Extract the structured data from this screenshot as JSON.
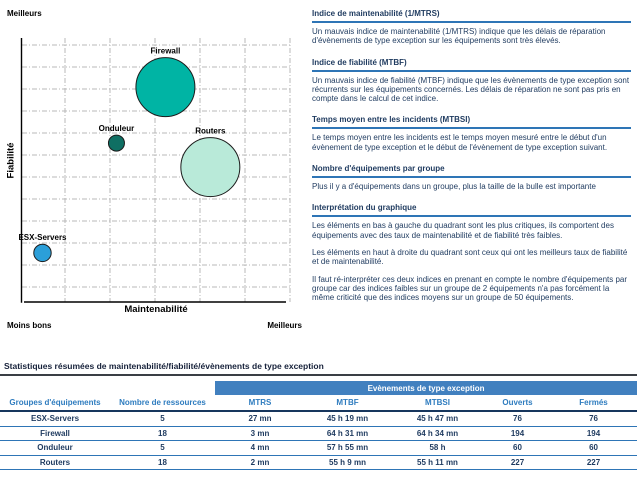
{
  "chart_data": {
    "type": "bubble",
    "title": "",
    "xlabel": "Maintenabilité",
    "ylabel": "Fiabilité",
    "corner_top_left": "Meilleurs",
    "corner_bottom_left": "Moins bons",
    "corner_bottom_right": "Meilleurs",
    "axis_scale": "qualitative: Moins bons -> Meilleurs (0..1 fractions of plot area)",
    "grid": "dashed",
    "bubble_size_meaning": "nombre d'équipements dans le groupe",
    "points": [
      {
        "label": "Firewall",
        "x": 0.535,
        "y": 0.814,
        "size": 18,
        "radius_px": 29.5,
        "color": "#00b4a4"
      },
      {
        "label": "Onduleur",
        "x": 0.353,
        "y": 0.602,
        "size": 5,
        "radius_px": 8,
        "color": "#0f6f63"
      },
      {
        "label": "Routers",
        "x": 0.702,
        "y": 0.511,
        "size": 18,
        "radius_px": 29.5,
        "color": "#b9ead9"
      },
      {
        "label": "ESX-Servers",
        "x": 0.078,
        "y": 0.186,
        "size": 5,
        "radius_px": 8.7,
        "color": "#2b9fd9"
      }
    ]
  },
  "info_panel": {
    "sections": [
      {
        "heading": "Indice de maintenabilité (1/MTRS)",
        "paragraphs": [
          "Un mauvais indice de maintenabilité (1/MTRS) indique que les délais de réparation d'évènements de type exception sur les équipements sont très élevés."
        ]
      },
      {
        "heading": "Indice de fiabilité (MTBF)",
        "paragraphs": [
          "Un mauvais indice de fiabilité (MTBF) indique que les évènements de type exception sont récurrents sur les équipements concernés. Les délais de réparation ne sont pas pris en compte dans le calcul de cet indice."
        ]
      },
      {
        "heading": "Temps moyen entre les incidents (MTBSI)",
        "paragraphs": [
          "Le temps moyen entre les incidents est le temps moyen mesuré entre le début d'un évènement de type exception et le début de l'évènement de type exception suivant."
        ]
      },
      {
        "heading": "Nombre d'équipements par groupe",
        "paragraphs": [
          "Plus il y a d'équipements dans un groupe, plus la taille de la bulle est importante"
        ]
      },
      {
        "heading": "Interprétation du graphique",
        "paragraphs": [
          "Les éléments en bas à gauche du quadrant sont les plus critiques, ils comportent des équipements avec des taux de maintenabilité et de fiabilité très faibles.",
          "Les éléments en haut à droite du quadrant sont ceux qui ont les meilleurs taux de fiabilité et de maintenabilité.",
          "Il faut ré-interpréter ces deux indices en prenant en compte le nombre d'équipements par groupe car des indices faibles sur un groupe de 2 équipements n'a pas forcément la même criticité que des indices moyens sur un groupe de 50 équipements."
        ]
      }
    ]
  },
  "summary": {
    "title": "Statistiques résumées de maintenabilité/fiabilité/évènements de type exception",
    "band_label": "Evènements de type exception",
    "columns": [
      "Groupes d'équipements",
      "Nombre de ressources",
      "MTRS",
      "MTBF",
      "MTBSI",
      "Ouverts",
      "Fermés"
    ],
    "rows": [
      [
        "ESX-Servers",
        "5",
        "27 mn",
        "45 h 19 mn",
        "45 h 47 mn",
        "76",
        "76"
      ],
      [
        "Firewall",
        "18",
        "3 mn",
        "64 h 31 mn",
        "64 h 34 mn",
        "194",
        "194"
      ],
      [
        "Onduleur",
        "5",
        "4 mn",
        "57 h 55 mn",
        "58 h",
        "60",
        "60"
      ],
      [
        "Routers",
        "18",
        "2 mn",
        "55 h 9 mn",
        "55 h 11 mn",
        "227",
        "227"
      ]
    ]
  },
  "colors": {
    "accent_blue": "#2e75b6",
    "band_blue": "#4180bf",
    "colhead_blue": "#2e7cbf",
    "dark_navy_text": "#1e3a5f",
    "grid_gray": "#b8b8b8"
  }
}
